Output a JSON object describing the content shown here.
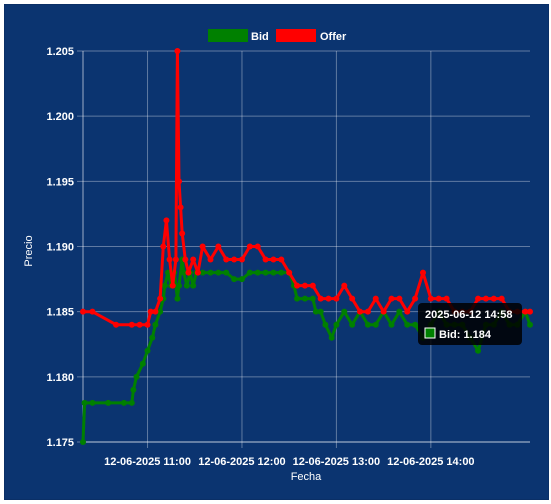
{
  "chart_data": {
    "type": "line",
    "legend": [
      {
        "name": "Bid",
        "color": "#008000"
      },
      {
        "name": "Offer",
        "color": "#ff0000"
      }
    ],
    "legend_position": "top-center",
    "xlabel": "Fecha",
    "ylabel": "Precio",
    "ylim": [
      1.175,
      1.205
    ],
    "yticks": [
      "1.175",
      "1.180",
      "1.185",
      "1.190",
      "1.195",
      "1.200",
      "1.205"
    ],
    "xticks": [
      {
        "label": "12-06-2025 11:00",
        "t": "10:55"
      },
      {
        "label": "12-06-2025 12:00",
        "t": "11:55"
      },
      {
        "label": "12-06-2025 13:00",
        "t": "12:55"
      },
      {
        "label": "12-06-2025 14:00",
        "t": "13:55"
      }
    ],
    "x_domain": [
      "10:14",
      "14:58"
    ],
    "grid": true,
    "series": [
      {
        "name": "Bid",
        "color": "#008000",
        "points": [
          [
            "10:14",
            1.175
          ],
          [
            "10:15",
            1.178
          ],
          [
            "10:20",
            1.178
          ],
          [
            "10:30",
            1.178
          ],
          [
            "10:40",
            1.178
          ],
          [
            "10:45",
            1.178
          ],
          [
            "10:46",
            1.179
          ],
          [
            "10:48",
            1.18
          ],
          [
            "10:52",
            1.181
          ],
          [
            "10:55",
            1.182
          ],
          [
            "10:58",
            1.183
          ],
          [
            "11:00",
            1.184
          ],
          [
            "11:03",
            1.185
          ],
          [
            "11:05",
            1.186
          ],
          [
            "11:06",
            1.187
          ],
          [
            "11:08",
            1.188
          ],
          [
            "11:10",
            1.187
          ],
          [
            "11:12",
            1.188
          ],
          [
            "11:14",
            1.186
          ],
          [
            "11:15",
            1.187
          ],
          [
            "11:17",
            1.189
          ],
          [
            "11:18",
            1.188
          ],
          [
            "11:20",
            1.187
          ],
          [
            "11:22",
            1.188
          ],
          [
            "11:24",
            1.187
          ],
          [
            "11:26",
            1.188
          ],
          [
            "11:30",
            1.188
          ],
          [
            "11:35",
            1.188
          ],
          [
            "11:40",
            1.188
          ],
          [
            "11:45",
            1.188
          ],
          [
            "11:50",
            1.1875
          ],
          [
            "11:55",
            1.1875
          ],
          [
            "12:00",
            1.188
          ],
          [
            "12:05",
            1.188
          ],
          [
            "12:10",
            1.188
          ],
          [
            "12:15",
            1.188
          ],
          [
            "12:20",
            1.188
          ],
          [
            "12:25",
            1.188
          ],
          [
            "12:28",
            1.187
          ],
          [
            "12:30",
            1.186
          ],
          [
            "12:35",
            1.186
          ],
          [
            "12:40",
            1.186
          ],
          [
            "12:42",
            1.185
          ],
          [
            "12:45",
            1.185
          ],
          [
            "12:48",
            1.184
          ],
          [
            "12:52",
            1.183
          ],
          [
            "12:55",
            1.184
          ],
          [
            "13:00",
            1.185
          ],
          [
            "13:05",
            1.184
          ],
          [
            "13:10",
            1.185
          ],
          [
            "13:15",
            1.184
          ],
          [
            "13:20",
            1.184
          ],
          [
            "13:25",
            1.185
          ],
          [
            "13:30",
            1.184
          ],
          [
            "13:35",
            1.185
          ],
          [
            "13:40",
            1.184
          ],
          [
            "13:45",
            1.184
          ],
          [
            "13:50",
            1.183
          ],
          [
            "13:55",
            1.184
          ],
          [
            "14:00",
            1.185
          ],
          [
            "14:05",
            1.184
          ],
          [
            "14:10",
            1.184
          ],
          [
            "14:15",
            1.184
          ],
          [
            "14:20",
            1.183
          ],
          [
            "14:25",
            1.182
          ],
          [
            "14:30",
            1.184
          ],
          [
            "14:35",
            1.184
          ],
          [
            "14:40",
            1.185
          ],
          [
            "14:45",
            1.184
          ],
          [
            "14:50",
            1.184
          ],
          [
            "14:55",
            1.185
          ],
          [
            "14:58",
            1.184
          ]
        ]
      },
      {
        "name": "Offer",
        "color": "#ff0000",
        "points": [
          [
            "10:14",
            1.185
          ],
          [
            "10:20",
            1.185
          ],
          [
            "10:35",
            1.184
          ],
          [
            "10:45",
            1.184
          ],
          [
            "10:50",
            1.184
          ],
          [
            "10:55",
            1.184
          ],
          [
            "10:57",
            1.185
          ],
          [
            "11:00",
            1.185
          ],
          [
            "11:03",
            1.186
          ],
          [
            "11:05",
            1.19
          ],
          [
            "11:07",
            1.192
          ],
          [
            "11:09",
            1.189
          ],
          [
            "11:11",
            1.187
          ],
          [
            "11:13",
            1.189
          ],
          [
            "11:14",
            1.205
          ],
          [
            "11:15",
            1.195
          ],
          [
            "11:16",
            1.193
          ],
          [
            "11:17",
            1.191
          ],
          [
            "11:19",
            1.189
          ],
          [
            "11:21",
            1.188
          ],
          [
            "11:24",
            1.189
          ],
          [
            "11:27",
            1.188
          ],
          [
            "11:30",
            1.19
          ],
          [
            "11:35",
            1.189
          ],
          [
            "11:40",
            1.19
          ],
          [
            "11:45",
            1.189
          ],
          [
            "11:50",
            1.189
          ],
          [
            "11:55",
            1.189
          ],
          [
            "12:00",
            1.19
          ],
          [
            "12:05",
            1.19
          ],
          [
            "12:10",
            1.189
          ],
          [
            "12:15",
            1.189
          ],
          [
            "12:20",
            1.189
          ],
          [
            "12:25",
            1.188
          ],
          [
            "12:30",
            1.187
          ],
          [
            "12:35",
            1.187
          ],
          [
            "12:40",
            1.187
          ],
          [
            "12:45",
            1.186
          ],
          [
            "12:50",
            1.186
          ],
          [
            "12:55",
            1.186
          ],
          [
            "13:00",
            1.187
          ],
          [
            "13:05",
            1.186
          ],
          [
            "13:10",
            1.185
          ],
          [
            "13:15",
            1.185
          ],
          [
            "13:20",
            1.186
          ],
          [
            "13:25",
            1.185
          ],
          [
            "13:30",
            1.186
          ],
          [
            "13:35",
            1.186
          ],
          [
            "13:40",
            1.185
          ],
          [
            "13:45",
            1.186
          ],
          [
            "13:50",
            1.188
          ],
          [
            "13:55",
            1.186
          ],
          [
            "14:00",
            1.186
          ],
          [
            "14:05",
            1.186
          ],
          [
            "14:10",
            1.185
          ],
          [
            "14:15",
            1.185
          ],
          [
            "14:20",
            1.185
          ],
          [
            "14:25",
            1.186
          ],
          [
            "14:30",
            1.186
          ],
          [
            "14:35",
            1.186
          ],
          [
            "14:40",
            1.186
          ],
          [
            "14:45",
            1.185
          ],
          [
            "14:50",
            1.185
          ],
          [
            "14:55",
            1.185
          ],
          [
            "14:58",
            1.185
          ]
        ]
      }
    ],
    "tooltip": {
      "title": "2025-06-12 14:58",
      "body": "Bid: 1.184",
      "swatch_color": "#008000",
      "anchor": {
        "series": "Bid",
        "t": "14:58",
        "value": 1.184
      }
    }
  }
}
